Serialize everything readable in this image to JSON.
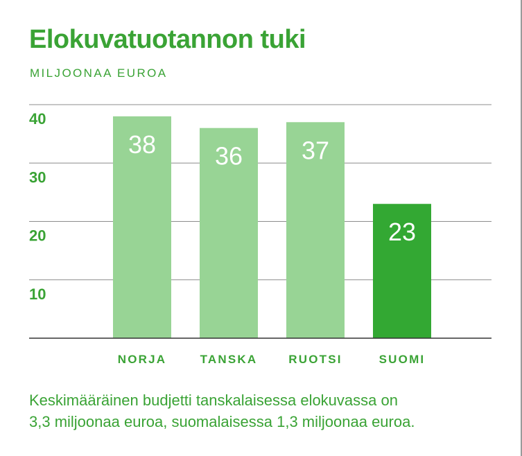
{
  "title": "Elokuvatuotannon tuki",
  "subtitle": "MILJOONAA EUROA",
  "colors": {
    "text": "#3aa335",
    "bar_light": "#98d495",
    "bar_highlight": "#33a833",
    "gridline": "#8c8c8c",
    "axis": "#333333"
  },
  "chart_data": {
    "type": "bar",
    "title": "Elokuvatuotannon tuki",
    "ylabel": "MILJOONAA EUROA",
    "categories": [
      "NORJA",
      "TANSKA",
      "RUOTSI",
      "SUOMI"
    ],
    "values": [
      38,
      36,
      37,
      23
    ],
    "data_labels": [
      "38",
      "36",
      "37",
      "23"
    ],
    "highlight": "SUOMI",
    "ylim": [
      0,
      40
    ],
    "yticks": [
      10,
      20,
      30,
      40
    ],
    "ytick_labels": [
      "10",
      "20",
      "30",
      "40"
    ],
    "grid": true,
    "legend": "none"
  },
  "footnote": {
    "line1": "Keskimääräinen budjetti tanskalaisessa elokuvassa on",
    "line2": "3,3 miljoonaa euroa, suomalaisessa 1,3 miljoonaa euroa."
  }
}
